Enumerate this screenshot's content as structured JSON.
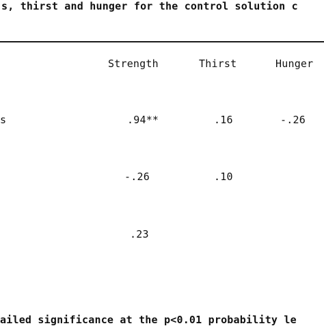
{
  "caption_fragment": "s, thirst and hunger for the control solution c",
  "table": {
    "headers": [
      "Strength",
      "Thirst",
      "Hunger"
    ],
    "row_label_fragment": "s",
    "rows": [
      {
        "strength": ".94**",
        "thirst": ".16",
        "hunger": "-.26"
      },
      {
        "strength": "-.26",
        "thirst": ".10",
        "hunger": ""
      },
      {
        "strength": ".23",
        "thirst": "",
        "hunger": ""
      }
    ]
  },
  "footnote_fragment": "ailed significance at the p<0.01 probability le"
}
